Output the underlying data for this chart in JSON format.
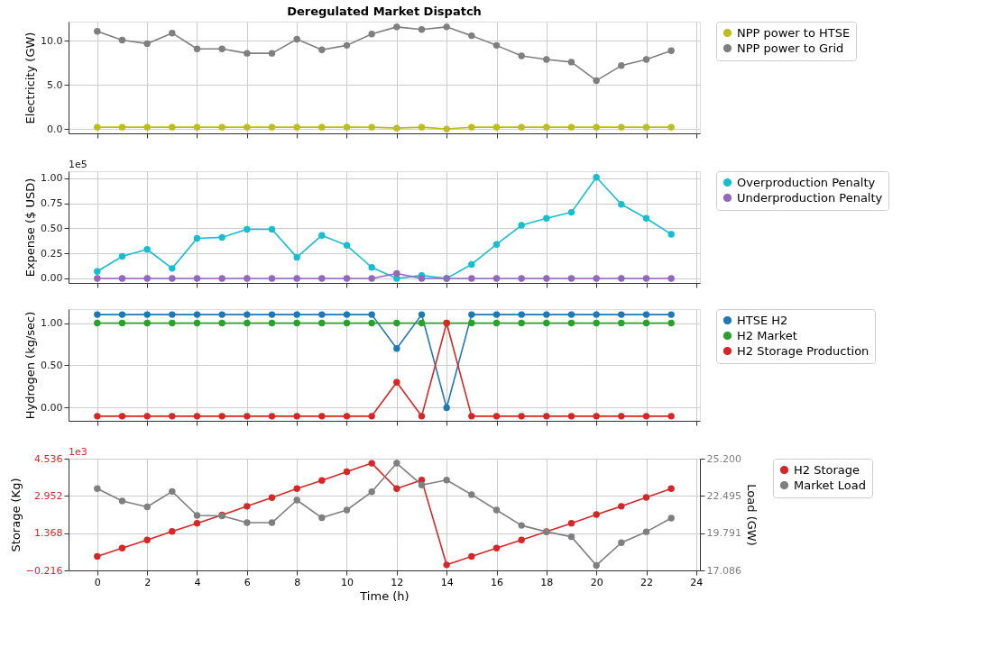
{
  "chart_data": [
    {
      "type": "line",
      "title": "Deregulated Market Dispatch",
      "ylabel": "Electricity (GW)",
      "x": [
        0,
        1,
        2,
        3,
        4,
        5,
        6,
        7,
        8,
        9,
        10,
        11,
        12,
        13,
        14,
        15,
        16,
        17,
        18,
        19,
        20,
        21,
        22,
        23
      ],
      "xlim": [
        -1.15,
        24.15
      ],
      "xticks": [
        0,
        2,
        4,
        6,
        8,
        10,
        12,
        14,
        16,
        18,
        20,
        22,
        24
      ],
      "ylim": [
        -0.5,
        12.2
      ],
      "yticks": [
        {
          "value": 0,
          "label": "0.0"
        },
        {
          "value": 5,
          "label": "5.0"
        },
        {
          "value": 10,
          "label": "10.0"
        }
      ],
      "grid": true,
      "legend": "right",
      "marker": "circle",
      "tick_labels": "y",
      "series": [
        {
          "name": "NPP power to HTSE",
          "color": "#bcbd22",
          "values": [
            0.2,
            0.2,
            0.2,
            0.2,
            0.2,
            0.2,
            0.2,
            0.2,
            0.2,
            0.2,
            0.2,
            0.2,
            0.1,
            0.2,
            0.0,
            0.2,
            0.2,
            0.2,
            0.2,
            0.2,
            0.2,
            0.2,
            0.2,
            0.2
          ]
        },
        {
          "name": "NPP power to Grid",
          "color": "#7f7f7f",
          "values": [
            11.1,
            10.1,
            9.7,
            10.9,
            9.1,
            9.1,
            8.6,
            8.6,
            10.2,
            9.0,
            9.5,
            10.8,
            11.6,
            11.3,
            11.6,
            10.6,
            9.5,
            8.3,
            7.9,
            7.6,
            5.5,
            7.2,
            7.9,
            8.9
          ]
        }
      ]
    },
    {
      "type": "line",
      "ylabel": "Expense ($ USD)",
      "annotations": [
        "1e5"
      ],
      "x": [
        0,
        1,
        2,
        3,
        4,
        5,
        6,
        7,
        8,
        9,
        10,
        11,
        12,
        13,
        14,
        15,
        16,
        17,
        18,
        19,
        20,
        21,
        22,
        23
      ],
      "xlim": [
        -1.15,
        24.15
      ],
      "xticks": [
        0,
        2,
        4,
        6,
        8,
        10,
        12,
        14,
        16,
        18,
        20,
        22,
        24
      ],
      "ylim": [
        -0.045,
        1.07
      ],
      "yticks": [
        {
          "value": 0,
          "label": "0.00"
        },
        0.25,
        {
          "value": 0.5,
          "label": "0.50"
        },
        0.75,
        {
          "value": 1,
          "label": "1.00"
        }
      ],
      "grid": true,
      "legend": "right",
      "marker": "circle",
      "tick_labels": "y",
      "series": [
        {
          "name": "Overproduction Penalty",
          "color": "#17becf",
          "values": [
            0.07,
            0.22,
            0.29,
            0.1,
            0.4,
            0.41,
            0.49,
            0.49,
            0.21,
            0.43,
            0.33,
            0.11,
            0.0,
            0.03,
            0.0,
            0.14,
            0.34,
            0.53,
            0.6,
            0.66,
            1.01,
            0.74,
            0.6,
            0.44
          ]
        },
        {
          "name": "Underproduction Penalty",
          "color": "#9467bd",
          "values": [
            0,
            0,
            0,
            0,
            0,
            0,
            0,
            0,
            0,
            0,
            0,
            0,
            0.05,
            0,
            0,
            0,
            0,
            0,
            0,
            0,
            0,
            0,
            0,
            0
          ]
        }
      ]
    },
    {
      "type": "line",
      "ylabel": "Hydrogen (kg/sec)",
      "x": [
        0,
        1,
        2,
        3,
        4,
        5,
        6,
        7,
        8,
        9,
        10,
        11,
        12,
        13,
        14,
        15,
        16,
        17,
        18,
        19,
        20,
        21,
        22,
        23
      ],
      "xlim": [
        -1.15,
        24.15
      ],
      "xticks": [
        0,
        2,
        4,
        6,
        8,
        10,
        12,
        14,
        16,
        18,
        20,
        22,
        24
      ],
      "ylim": [
        -0.155,
        1.165
      ],
      "yticks": [
        {
          "value": 0,
          "label": "0.00"
        },
        {
          "value": 0.5,
          "label": "0.50"
        },
        {
          "value": 1,
          "label": "1.00"
        }
      ],
      "grid": true,
      "legend": "right",
      "marker": "circle",
      "tick_labels": "y",
      "series": [
        {
          "name": "HTSE H2",
          "color": "#1f77b4",
          "values": [
            1.1,
            1.1,
            1.1,
            1.1,
            1.1,
            1.1,
            1.1,
            1.1,
            1.1,
            1.1,
            1.1,
            1.1,
            0.7,
            1.1,
            0.0,
            1.1,
            1.1,
            1.1,
            1.1,
            1.1,
            1.1,
            1.1,
            1.1,
            1.1
          ]
        },
        {
          "name": "H2 Market",
          "color": "#2ca02c",
          "values": [
            1,
            1,
            1,
            1,
            1,
            1,
            1,
            1,
            1,
            1,
            1,
            1,
            1,
            1,
            1,
            1,
            1,
            1,
            1,
            1,
            1,
            1,
            1,
            1
          ]
        },
        {
          "name": "H2 Storage Production",
          "color": "#d62728",
          "values": [
            -0.1,
            -0.1,
            -0.1,
            -0.1,
            -0.1,
            -0.1,
            -0.1,
            -0.1,
            -0.1,
            -0.1,
            -0.1,
            -0.1,
            0.3,
            -0.1,
            1.0,
            -0.1,
            -0.1,
            -0.1,
            -0.1,
            -0.1,
            -0.1,
            -0.1,
            -0.1,
            -0.1
          ]
        }
      ]
    },
    {
      "type": "line",
      "ylabel": "Storage  (Kg)",
      "y2label": "Load (GW)",
      "xlabel": "Time (h)",
      "annotations": [
        "1e3"
      ],
      "x": [
        0,
        1,
        2,
        3,
        4,
        5,
        6,
        7,
        8,
        9,
        10,
        11,
        12,
        13,
        14,
        15,
        16,
        17,
        18,
        19,
        20,
        21,
        22,
        23
      ],
      "xlim": [
        -1.15,
        24.15
      ],
      "xticks": [
        0,
        2,
        4,
        6,
        8,
        10,
        12,
        14,
        16,
        18,
        20,
        22,
        24
      ],
      "ylim": [
        -0.216,
        4.536
      ],
      "yticks": [
        {
          "value": -0.216,
          "label": "−0.216"
        },
        1.368,
        2.952,
        4.536
      ],
      "y2lim": [
        17.086,
        25.2
      ],
      "y2ticks": [
        17.086,
        19.791,
        22.495,
        {
          "value": 25.2,
          "label": "25.200"
        }
      ],
      "grid": true,
      "legend": "right",
      "marker": "circle",
      "series": [
        {
          "name": "H2 Storage",
          "color": "#d62728",
          "values": [
            0.38,
            0.73,
            1.08,
            1.44,
            1.79,
            2.14,
            2.51,
            2.88,
            3.26,
            3.61,
            3.98,
            4.34,
            3.26,
            3.63,
            0.02,
            0.38,
            0.73,
            1.08,
            1.43,
            1.79,
            2.16,
            2.51,
            2.89,
            3.26
          ]
        },
        {
          "name": "Market Load",
          "color": "#7f7f7f",
          "axis": "y2",
          "values": [
            23.02,
            22.13,
            21.7,
            22.82,
            21.08,
            21.04,
            20.55,
            20.55,
            22.19,
            20.91,
            21.47,
            22.79,
            24.87,
            23.29,
            23.65,
            22.59,
            21.47,
            20.35,
            19.89,
            19.53,
            17.45,
            19.1,
            19.89,
            20.88
          ]
        }
      ]
    }
  ]
}
